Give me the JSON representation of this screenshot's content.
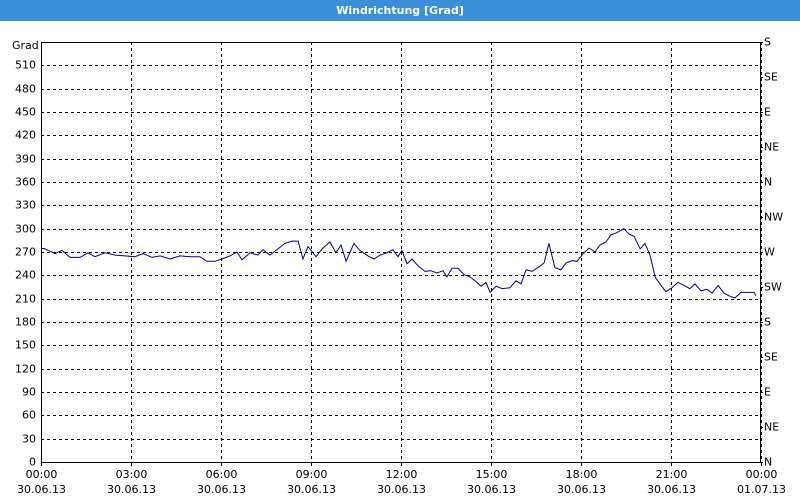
{
  "chart_data": {
    "type": "line",
    "title": "Windrichtung [Grad]",
    "y_label": "Grad",
    "x": [
      0,
      0.13,
      0.47,
      0.7,
      0.97,
      1.3,
      1.57,
      1.8,
      2.13,
      2.47,
      2.8,
      3.13,
      3.4,
      3.7,
      3.97,
      4.3,
      4.63,
      4.97,
      5.3,
      5.53,
      5.8,
      6.03,
      6.3,
      6.53,
      6.7,
      6.97,
      7.23,
      7.4,
      7.63,
      7.9,
      8.13,
      8.37,
      8.57,
      8.73,
      8.9,
      9.17,
      9.37,
      9.63,
      9.83,
      10,
      10.17,
      10.43,
      10.63,
      10.9,
      11.1,
      11.3,
      11.53,
      11.73,
      11.9,
      12.03,
      12.2,
      12.37,
      12.57,
      12.8,
      13,
      13.2,
      13.4,
      13.53,
      13.7,
      13.9,
      14.1,
      14.3,
      14.47,
      14.67,
      14.83,
      14.97,
      15.17,
      15.37,
      15.63,
      15.83,
      16,
      16.17,
      16.37,
      16.57,
      16.77,
      16.93,
      17.13,
      17.33,
      17.5,
      17.7,
      17.87,
      18.07,
      18.27,
      18.47,
      18.63,
      18.83,
      19,
      19.2,
      19.43,
      19.6,
      19.77,
      19.97,
      20.13,
      20.3,
      20.47,
      20.67,
      20.83,
      21.03,
      21.23,
      21.43,
      21.63,
      21.8,
      22,
      22.2,
      22.37,
      22.57,
      22.77,
      22.97,
      23.13,
      23.33,
      23.57,
      23.77,
      23.83
    ],
    "series": [
      {
        "color": "#00008b",
        "values": [
          275,
          274,
          268,
          272,
          263,
          263,
          269,
          264,
          269,
          266,
          265,
          264,
          268,
          263,
          265,
          261,
          265,
          264,
          264,
          258,
          258,
          261,
          265,
          270,
          260,
          269,
          266,
          273,
          266,
          274,
          281,
          284,
          284,
          261,
          277,
          264,
          274,
          283,
          269,
          279,
          258,
          281,
          272,
          265,
          261,
          266,
          269,
          273,
          264,
          272,
          255,
          261,
          252,
          245,
          246,
          243,
          246,
          238,
          249,
          249,
          241,
          238,
          233,
          226,
          231,
          218,
          226,
          223,
          224,
          233,
          229,
          247,
          245,
          250,
          256,
          281,
          250,
          247,
          256,
          259,
          258,
          268,
          275,
          270,
          279,
          283,
          292,
          295,
          300,
          293,
          290,
          274,
          281,
          266,
          238,
          227,
          219,
          224,
          231,
          227,
          223,
          229,
          220,
          222,
          217,
          227,
          217,
          213,
          211,
          218,
          218,
          218,
          214
        ]
      }
    ],
    "xlim": [
      0,
      24
    ],
    "xticks": [
      {
        "value": 0,
        "label": "00:00"
      },
      {
        "value": 3,
        "label": "03:00"
      },
      {
        "value": 6,
        "label": "06:00"
      },
      {
        "value": 9,
        "label": "09:00"
      },
      {
        "value": 12,
        "label": "12:00"
      },
      {
        "value": 15,
        "label": "15:00"
      },
      {
        "value": 18,
        "label": "18:00"
      },
      {
        "value": 21,
        "label": "21:00"
      },
      {
        "value": 24,
        "label": "00:00"
      }
    ],
    "xtick_dates": [
      "30.06.13",
      "30.06.13",
      "30.06.13",
      "30.06.13",
      "30.06.13",
      "30.06.13",
      "30.06.13",
      "30.06.13",
      "01.07.13"
    ],
    "ylim": [
      0,
      540
    ],
    "yticks": [
      0,
      30,
      60,
      90,
      120,
      150,
      180,
      210,
      240,
      270,
      300,
      330,
      360,
      390,
      420,
      450,
      480,
      510
    ],
    "y2lim": [
      0,
      540
    ],
    "y2ticks": [
      {
        "value": 0,
        "label": "N"
      },
      {
        "value": 45,
        "label": "NE"
      },
      {
        "value": 90,
        "label": "E"
      },
      {
        "value": 135,
        "label": "SE"
      },
      {
        "value": 180,
        "label": "S"
      },
      {
        "value": 225,
        "label": "SW"
      },
      {
        "value": 270,
        "label": "W"
      },
      {
        "value": 315,
        "label": "NW"
      },
      {
        "value": 360,
        "label": "N"
      },
      {
        "value": 405,
        "label": "NE"
      },
      {
        "value": 450,
        "label": "E"
      },
      {
        "value": 495,
        "label": "SE"
      },
      {
        "value": 540,
        "label": "S"
      }
    ],
    "grid": true
  }
}
